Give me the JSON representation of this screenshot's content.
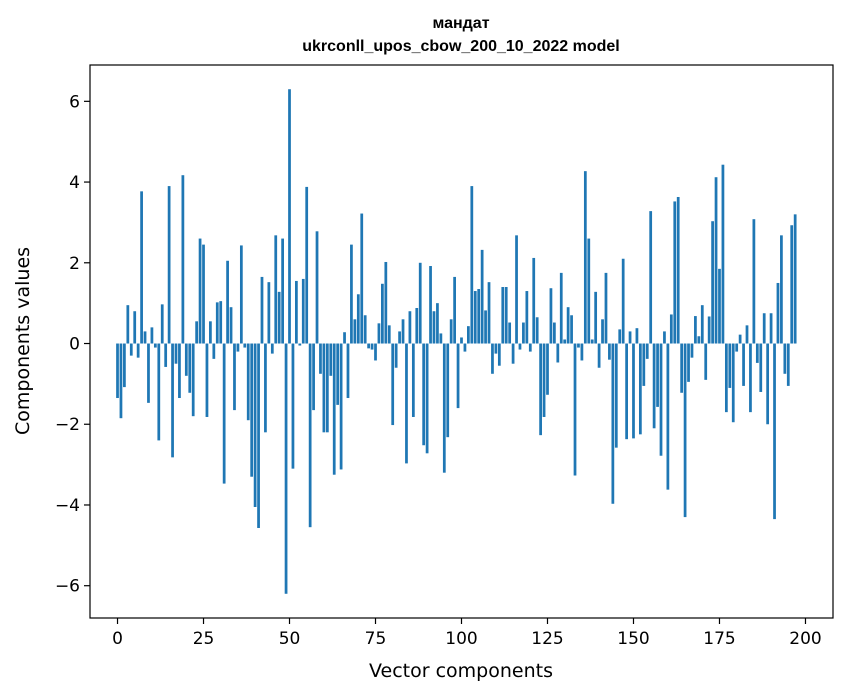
{
  "chart_data": {
    "type": "bar",
    "title": "мандат",
    "subtitle": "ukrconll_upos_cbow_200_10_2022 model",
    "xlabel": "Vector components",
    "ylabel": "Components values",
    "xlim": [
      -8,
      208
    ],
    "ylim": [
      -6.8,
      6.9
    ],
    "xticks": [
      0,
      25,
      50,
      75,
      100,
      125,
      150,
      175,
      200
    ],
    "yticks": [
      -6,
      -4,
      -2,
      0,
      2,
      4,
      6
    ],
    "xtick_labels": [
      "0",
      "25",
      "50",
      "75",
      "100",
      "125",
      "150",
      "175",
      "200"
    ],
    "ytick_labels": [
      "−6",
      "−4",
      "−2",
      "0",
      "2",
      "4",
      "6"
    ],
    "bar_color": "#1f77b4",
    "values": [
      -1.35,
      -1.85,
      -1.08,
      0.95,
      -0.3,
      0.8,
      -0.35,
      3.77,
      0.3,
      -1.47,
      0.4,
      -0.1,
      -2.4,
      0.97,
      -0.58,
      3.9,
      -2.82,
      -0.5,
      -1.35,
      4.17,
      -0.8,
      -1.22,
      -1.8,
      0.55,
      2.6,
      2.45,
      -1.82,
      0.55,
      -0.38,
      1.02,
      1.05,
      -3.47,
      2.05,
      0.9,
      -1.65,
      -0.2,
      2.43,
      -0.1,
      -1.9,
      -3.3,
      -4.05,
      -4.57,
      1.65,
      -2.2,
      1.52,
      -0.25,
      2.68,
      1.28,
      2.6,
      -6.2,
      6.3,
      -3.1,
      1.55,
      -0.05,
      1.6,
      3.88,
      -4.55,
      -1.65,
      2.78,
      -0.75,
      -2.2,
      -2.2,
      -0.8,
      -3.25,
      -1.52,
      -3.12,
      0.28,
      -1.35,
      2.45,
      0.6,
      1.22,
      3.22,
      0.7,
      -0.12,
      -0.15,
      -0.42,
      0.5,
      1.48,
      2.02,
      0.45,
      -2.02,
      -0.6,
      0.3,
      0.6,
      -2.97,
      0.8,
      -1.82,
      0.88,
      2.0,
      -2.52,
      -2.72,
      1.92,
      0.8,
      1.0,
      0.25,
      -3.2,
      -2.32,
      0.6,
      1.65,
      -1.6,
      0.15,
      -0.2,
      0.43,
      3.9,
      1.3,
      1.35,
      2.32,
      0.82,
      1.52,
      -0.75,
      -0.25,
      -0.55,
      1.4,
      1.4,
      0.52,
      -0.5,
      2.68,
      -0.15,
      0.52,
      1.3,
      -0.2,
      2.12,
      0.65,
      -2.27,
      -1.82,
      -1.27,
      1.37,
      0.52,
      -0.47,
      1.75,
      0.1,
      0.9,
      0.7,
      -3.27,
      -0.1,
      -0.42,
      4.27,
      2.6,
      0.1,
      1.28,
      -0.6,
      0.6,
      1.75,
      -0.4,
      -3.97,
      -2.58,
      0.35,
      2.1,
      -2.37,
      0.3,
      -2.35,
      0.38,
      -2.25,
      -1.05,
      -0.38,
      3.28,
      -2.1,
      -1.57,
      -2.78,
      0.3,
      -3.62,
      0.72,
      3.52,
      3.63,
      -1.22,
      -4.3,
      -0.95,
      -0.35,
      0.68,
      0.18,
      0.95,
      -0.9,
      0.67,
      3.03,
      4.12,
      1.85,
      4.43,
      -1.7,
      -1.1,
      -1.95,
      -0.2,
      0.22,
      -1.05,
      0.45,
      -1.7,
      3.08,
      -0.48,
      -1.2,
      0.75,
      -2.0,
      0.75,
      -4.35,
      1.5,
      2.68,
      -0.75,
      -1.05,
      2.93,
      3.2
    ]
  }
}
